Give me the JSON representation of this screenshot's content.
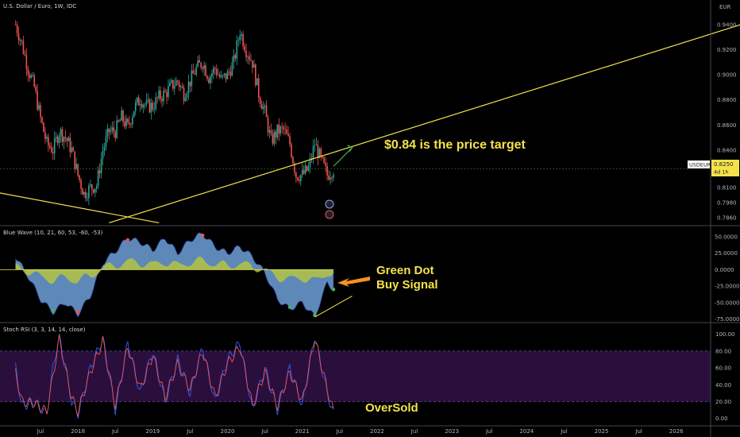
{
  "chart_title": "U.S. Dollar / Euro, 1W, IDC",
  "currency": "EUR",
  "symbol_label": "USDEUR",
  "last_price": "0.8250",
  "countdown": "4d 1h",
  "colors": {
    "up": "#26a69a",
    "down": "#ef5350",
    "trendline": "#f5e24a",
    "annotation": "#f5e24a",
    "wave_fill": "#6fa0d8",
    "arrow": "#f7931a",
    "rsi_band": "#2a0f3d",
    "k_line": "#2962ff",
    "d_line": "#ef5350"
  },
  "x_labels": [
    "Jul",
    "2018",
    "Jul",
    "2019",
    "Jul",
    "2020",
    "Jul",
    "2021",
    "Jul",
    "2022",
    "Jul",
    "2023",
    "Jul",
    "2024",
    "Jul",
    "2025",
    "Jul",
    "2026"
  ],
  "chart_data": [
    {
      "type": "candlestick",
      "title": "U.S. Dollar / Euro, 1W, IDC",
      "y_ticks": [
        "0.9400",
        "0.9200",
        "0.9000",
        "0.8800",
        "0.8600",
        "0.8400",
        "0.8250",
        "0.8100",
        "0.7980",
        "0.7860"
      ],
      "ylim": [
        0.781,
        0.952
      ],
      "close_path": [
        [
          "2017-03",
          0.94
        ],
        [
          "2017-04",
          0.925
        ],
        [
          "2017-05",
          0.905
        ],
        [
          "2017-06",
          0.89
        ],
        [
          "2017-07",
          0.865
        ],
        [
          "2017-08",
          0.845
        ],
        [
          "2017-09",
          0.84
        ],
        [
          "2017-10",
          0.855
        ],
        [
          "2017-11",
          0.85
        ],
        [
          "2017-12",
          0.84
        ],
        [
          "2018-01",
          0.82
        ],
        [
          "2018-02",
          0.805
        ],
        [
          "2018-03",
          0.81
        ],
        [
          "2018-04",
          0.812
        ],
        [
          "2018-05",
          0.84
        ],
        [
          "2018-06",
          0.855
        ],
        [
          "2018-07",
          0.855
        ],
        [
          "2018-08",
          0.866
        ],
        [
          "2018-09",
          0.858
        ],
        [
          "2018-10",
          0.873
        ],
        [
          "2018-11",
          0.881
        ],
        [
          "2018-12",
          0.875
        ],
        [
          "2019-01",
          0.875
        ],
        [
          "2019-02",
          0.882
        ],
        [
          "2019-03",
          0.885
        ],
        [
          "2019-04",
          0.891
        ],
        [
          "2019-05",
          0.895
        ],
        [
          "2019-06",
          0.885
        ],
        [
          "2019-07",
          0.895
        ],
        [
          "2019-08",
          0.905
        ],
        [
          "2019-09",
          0.91
        ],
        [
          "2019-10",
          0.898
        ],
        [
          "2019-11",
          0.905
        ],
        [
          "2019-12",
          0.896
        ],
        [
          "2020-01",
          0.9
        ],
        [
          "2020-02",
          0.91
        ],
        [
          "2020-03",
          0.935
        ],
        [
          "2020-04",
          0.92
        ],
        [
          "2020-05",
          0.91
        ],
        [
          "2020-06",
          0.885
        ],
        [
          "2020-07",
          0.87
        ],
        [
          "2020-08",
          0.847
        ],
        [
          "2020-09",
          0.855
        ],
        [
          "2020-10",
          0.856
        ],
        [
          "2020-11",
          0.845
        ],
        [
          "2020-12",
          0.82
        ],
        [
          "2021-01",
          0.82
        ],
        [
          "2021-02",
          0.825
        ],
        [
          "2021-03",
          0.845
        ],
        [
          "2021-04",
          0.832
        ],
        [
          "2021-05",
          0.82
        ],
        [
          "2021-06",
          0.825
        ]
      ],
      "trendlines": [
        {
          "from": [
            "2016-08",
            0.81
          ],
          "to": [
            "2019-02",
            0.782
          ]
        },
        {
          "from": [
            "2018-06",
            0.782
          ],
          "to": [
            "2026-12",
            0.941
          ]
        }
      ],
      "annotations": [
        "$0.84 is the price target"
      ],
      "target_arrow": {
        "from": [
          "2021-06",
          0.827
        ],
        "to": [
          "2021-09",
          0.842
        ]
      }
    },
    {
      "type": "area",
      "title": "Blue Wave (10, 21, 60, 53, -60, -53)",
      "y_ticks": [
        "50.0000",
        "25.0000",
        "0.0000",
        "-25.0000",
        "-50.0000",
        "-75.0000"
      ],
      "ylim": [
        -78,
        62
      ],
      "wave": [
        [
          "2017-03",
          20
        ],
        [
          "2017-05",
          -10
        ],
        [
          "2017-07",
          -45
        ],
        [
          "2017-09",
          -65
        ],
        [
          "2017-11",
          -50
        ],
        [
          "2018-01",
          -68
        ],
        [
          "2018-03",
          -40
        ],
        [
          "2018-05",
          10
        ],
        [
          "2018-07",
          28
        ],
        [
          "2018-09",
          48
        ],
        [
          "2018-11",
          42
        ],
        [
          "2019-01",
          30
        ],
        [
          "2019-03",
          48
        ],
        [
          "2019-05",
          25
        ],
        [
          "2019-07",
          45
        ],
        [
          "2019-09",
          55
        ],
        [
          "2019-11",
          35
        ],
        [
          "2020-01",
          25
        ],
        [
          "2020-03",
          35
        ],
        [
          "2020-05",
          20
        ],
        [
          "2020-07",
          -5
        ],
        [
          "2020-09",
          -45
        ],
        [
          "2020-11",
          -60
        ],
        [
          "2021-01",
          -50
        ],
        [
          "2021-03",
          -72
        ],
        [
          "2021-05",
          -20
        ],
        [
          "2021-06",
          -30
        ]
      ],
      "signal_dots": [
        {
          "x": "2017-09",
          "value": -62,
          "color": "green"
        },
        {
          "x": "2018-01",
          "value": -65,
          "color": "red"
        },
        {
          "x": "2018-09",
          "value": 45,
          "color": "red"
        },
        {
          "x": "2019-09",
          "value": 52,
          "color": "red"
        },
        {
          "x": "2020-11",
          "value": -57,
          "color": "green"
        },
        {
          "x": "2021-03",
          "value": -69,
          "color": "green"
        },
        {
          "x": "2021-06",
          "value": -30,
          "color": "green"
        }
      ],
      "divergence_line": {
        "from": [
          "2021-03",
          -72
        ],
        "to": [
          "2021-09",
          -40
        ]
      },
      "annotations": [
        "Green Dot",
        "Buy Signal"
      ]
    },
    {
      "type": "line",
      "title": "Stoch RSI (3, 3, 14, 14, close)",
      "y_ticks": [
        "100.00",
        "80.00",
        "60.00",
        "40.00",
        "20.00",
        "0.00"
      ],
      "ylim": [
        -5,
        110
      ],
      "band": [
        20,
        80
      ],
      "series": [
        {
          "key": "k",
          "values": [
            [
              "2017-03",
              60
            ],
            [
              "2017-04",
              15
            ],
            [
              "2017-06",
              20
            ],
            [
              "2017-08",
              5
            ],
            [
              "2017-09",
              60
            ],
            [
              "2017-10",
              98
            ],
            [
              "2017-12",
              20
            ],
            [
              "2018-01",
              5
            ],
            [
              "2018-03",
              60
            ],
            [
              "2018-05",
              95
            ],
            [
              "2018-07",
              10
            ],
            [
              "2018-09",
              90
            ],
            [
              "2018-11",
              30
            ],
            [
              "2019-01",
              80
            ],
            [
              "2019-03",
              20
            ],
            [
              "2019-05",
              70
            ],
            [
              "2019-07",
              30
            ],
            [
              "2019-09",
              85
            ],
            [
              "2019-11",
              20
            ],
            [
              "2020-01",
              70
            ],
            [
              "2020-03",
              90
            ],
            [
              "2020-05",
              10
            ],
            [
              "2020-07",
              60
            ],
            [
              "2020-09",
              10
            ],
            [
              "2020-11",
              60
            ],
            [
              "2021-01",
              15
            ],
            [
              "2021-03",
              98
            ],
            [
              "2021-05",
              30
            ],
            [
              "2021-06",
              5
            ]
          ]
        },
        {
          "key": "d",
          "values": [
            [
              "2017-03",
              55
            ],
            [
              "2017-04",
              20
            ],
            [
              "2017-06",
              18
            ],
            [
              "2017-08",
              8
            ],
            [
              "2017-09",
              50
            ],
            [
              "2017-10",
              95
            ],
            [
              "2017-12",
              25
            ],
            [
              "2018-01",
              8
            ],
            [
              "2018-03",
              55
            ],
            [
              "2018-05",
              92
            ],
            [
              "2018-07",
              15
            ],
            [
              "2018-09",
              85
            ],
            [
              "2018-11",
              35
            ],
            [
              "2019-01",
              75
            ],
            [
              "2019-03",
              25
            ],
            [
              "2019-05",
              65
            ],
            [
              "2019-07",
              35
            ],
            [
              "2019-09",
              80
            ],
            [
              "2019-11",
              25
            ],
            [
              "2020-01",
              65
            ],
            [
              "2020-03",
              85
            ],
            [
              "2020-05",
              15
            ],
            [
              "2020-07",
              55
            ],
            [
              "2020-09",
              15
            ],
            [
              "2020-11",
              55
            ],
            [
              "2021-01",
              20
            ],
            [
              "2021-03",
              95
            ],
            [
              "2021-05",
              35
            ],
            [
              "2021-06",
              8
            ]
          ]
        }
      ],
      "annotations": [
        "OverSold"
      ]
    }
  ]
}
